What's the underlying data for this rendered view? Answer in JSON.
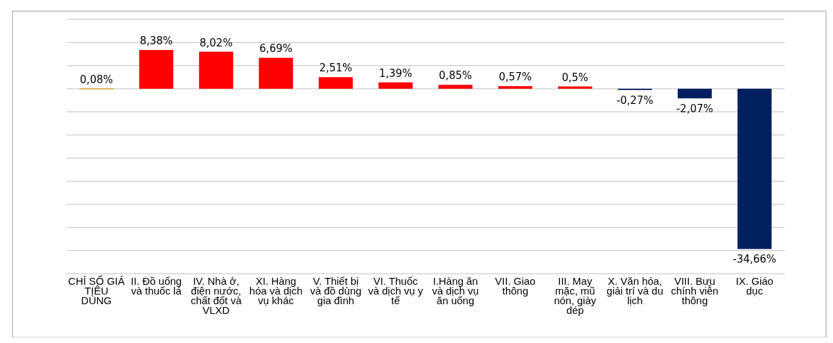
{
  "chart_data": {
    "type": "bar",
    "categories": [
      "CHỈ SỐ GIÁ TIÊU DÙNG",
      "II. Đồ uống và thuốc lá",
      "IV. Nhà ở, điện nước, chất đốt và VLXD",
      "XI. Hàng hóa và dịch vụ khác",
      "V. Thiết bị và đồ dùng gia đình",
      "VI. Thuốc và dịch vụ y tế",
      "I.Hàng ăn và dịch vụ ăn uống",
      "VII. Giao thông",
      "III. May mặc, mũ nón, giày dép",
      "X. Văn hóa, giải trí và du lịch",
      "VIII. Bưu chính viễn thông",
      "IX. Giáo dục"
    ],
    "values": [
      0.08,
      8.38,
      8.02,
      6.69,
      2.51,
      1.39,
      0.85,
      0.57,
      0.5,
      -0.27,
      -2.07,
      -34.66
    ],
    "value_labels": [
      "0,08%",
      "8,38%",
      "8,02%",
      "6,69%",
      "2,51%",
      "1,39%",
      "0,85%",
      "0,57%",
      "0,5%",
      "-0,27%",
      "-2,07%",
      "-34,66%"
    ],
    "colors": [
      "#d4a52c",
      "#ff0000",
      "#ff0000",
      "#ff0000",
      "#ff0000",
      "#ff0000",
      "#ff0000",
      "#ff0000",
      "#ff0000",
      "#002060",
      "#002060",
      "#002060"
    ],
    "ylim": [
      -40,
      15
    ],
    "yticks": [
      {
        "value": -40,
        "label": null
      },
      {
        "value": -35,
        "label": null
      },
      {
        "value": -30,
        "label": null
      },
      {
        "value": -25,
        "label": null
      },
      {
        "value": -20,
        "label": null
      },
      {
        "value": -15,
        "label": null
      },
      {
        "value": -10,
        "label": null
      },
      {
        "value": -5,
        "label": null
      },
      {
        "value": 0,
        "label": null
      },
      {
        "value": 5,
        "label": null
      },
      {
        "value": 10,
        "label": null
      },
      {
        "value": 15,
        "label": null
      }
    ],
    "tick_labels": "x",
    "grid": "y"
  }
}
